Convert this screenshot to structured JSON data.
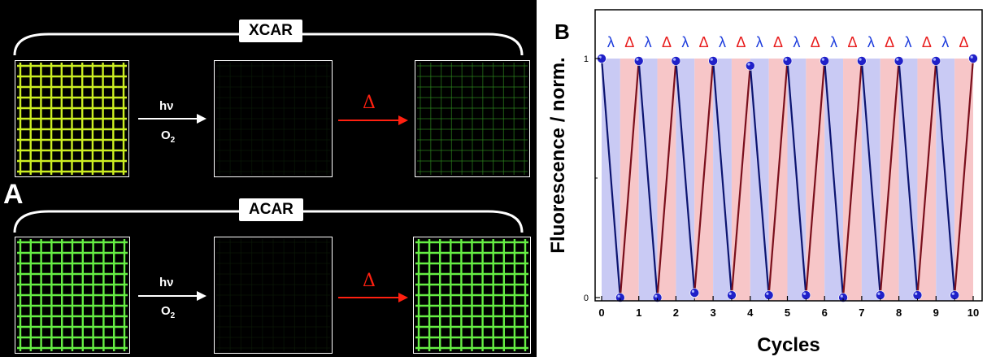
{
  "panel_a": {
    "letter": "A",
    "rows": [
      {
        "tag": "XCAR",
        "tiles": [
          "#ccee22",
          "#0a1a08",
          "#2f8a20"
        ],
        "first_arrow": {
          "top": "hν",
          "bottom_main": "O",
          "bottom_sub": "2"
        },
        "second_arrow_label": "Δ"
      },
      {
        "tag": "ACAR",
        "tiles": [
          "#66ee44",
          "#0c1a08",
          "#66ee44"
        ],
        "first_arrow": {
          "top": "hν",
          "bottom_main": "O",
          "bottom_sub": "2"
        },
        "second_arrow_label": "Δ"
      }
    ]
  },
  "panel_b": {
    "letter": "B",
    "top_symbols": [
      "λ",
      "Δ",
      "λ",
      "Δ",
      "λ",
      "Δ",
      "λ",
      "Δ",
      "λ",
      "Δ",
      "λ",
      "Δ",
      "λ",
      "Δ",
      "λ",
      "Δ",
      "λ",
      "Δ",
      "λ",
      "Δ"
    ],
    "colors": {
      "lambda": "#1a3adc",
      "delta": "#e81c1c",
      "band_blue": "#c9caf4",
      "band_red": "#f7c6c8",
      "line_down": "#0c1470",
      "line_up": "#7a0f1c",
      "point": "#2020c8"
    }
  },
  "chart_data": {
    "type": "line",
    "xlabel": "Cycles",
    "ylabel": "Fluorescence / norm.",
    "xlim": [
      0,
      10
    ],
    "ylim": [
      0,
      1
    ],
    "xticks": [
      "0",
      "1",
      "2",
      "3",
      "4",
      "5",
      "6",
      "7",
      "8",
      "9",
      "10"
    ],
    "yticks": [
      "0",
      "1"
    ],
    "series": [
      {
        "x": [
          0,
          0.5,
          1,
          1.5,
          2,
          2.5,
          3,
          3.5,
          4,
          4.5,
          5,
          5.5,
          6,
          6.5,
          7,
          7.5,
          8,
          8.5,
          9,
          9.5,
          10
        ],
        "y": [
          1,
          0.0,
          0.99,
          0.0,
          0.99,
          0.02,
          0.99,
          0.01,
          0.97,
          0.01,
          0.99,
          0.01,
          0.99,
          0.0,
          0.99,
          0.01,
          0.99,
          0.01,
          0.99,
          0.01,
          1
        ]
      }
    ]
  }
}
